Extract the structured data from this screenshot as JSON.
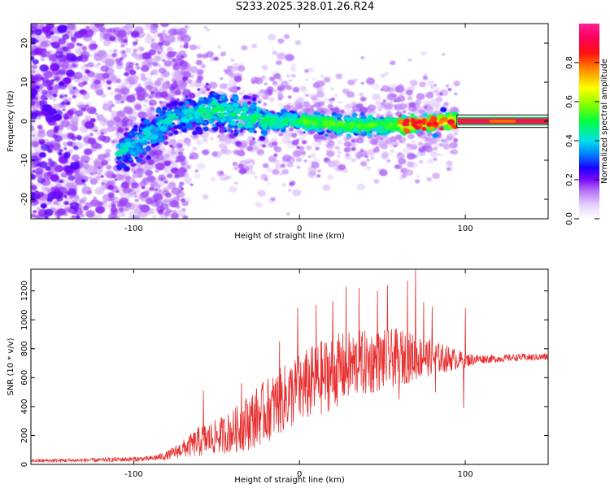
{
  "title": "S233.2025.328.01.26.R24",
  "colors": {
    "frame": "#000000",
    "snr_line": "#e83030",
    "stripe": "#e0204a",
    "background": "#ffffff"
  },
  "chart_data": [
    {
      "type": "heatmap",
      "name": "spectrogram",
      "xlabel": "Height of straight line (km)",
      "ylabel": "Frequency (Hz)",
      "xlim": [
        -162,
        150
      ],
      "ylim": [
        -25,
        25
      ],
      "xticks": [
        -100,
        0,
        100
      ],
      "yticks": [
        -20,
        -10,
        0,
        10,
        20
      ],
      "grid": false,
      "description_of_ridge": [
        {
          "x": -108,
          "y": -8
        },
        {
          "x": -95,
          "y": -5
        },
        {
          "x": -80,
          "y": 0
        },
        {
          "x": -65,
          "y": 2
        },
        {
          "x": -50,
          "y": 3
        },
        {
          "x": -35,
          "y": 1
        },
        {
          "x": -15,
          "y": 0
        },
        {
          "x": 0,
          "y": 0
        },
        {
          "x": 30,
          "y": -1
        },
        {
          "x": 60,
          "y": -1
        },
        {
          "x": 95,
          "y": 0
        },
        {
          "x": 150,
          "y": 0
        }
      ],
      "colorbar": {
        "label": "Normalized spectral amplitude",
        "range": [
          0,
          1
        ],
        "ticks": [
          "0.0",
          "0.2",
          "0.4",
          "0.6",
          "0.8"
        ]
      }
    },
    {
      "type": "line",
      "name": "snr",
      "xlabel": "Height of straight line (km)",
      "ylabel": "SNR (10 * v/v)",
      "xlim": [
        -162,
        150
      ],
      "ylim": [
        0,
        1350
      ],
      "xticks": [
        -100,
        0,
        100
      ],
      "yticks": [
        0,
        200,
        400,
        600,
        800,
        1000,
        1200
      ],
      "grid": false,
      "series": [
        {
          "name": "SNR",
          "envelope_x": [
            -162,
            -120,
            -90,
            -80,
            -70,
            -60,
            -50,
            -40,
            -30,
            -20,
            -10,
            0,
            10,
            20,
            30,
            40,
            50,
            60,
            70,
            80,
            90,
            100,
            110,
            120,
            130,
            140,
            150
          ],
          "envelope_mean": [
            25,
            30,
            40,
            60,
            110,
            160,
            190,
            230,
            300,
            370,
            450,
            520,
            580,
            640,
            680,
            700,
            720,
            740,
            740,
            740,
            730,
            720,
            730,
            730,
            740,
            740,
            745
          ],
          "envelope_spread": [
            12,
            15,
            18,
            30,
            60,
            110,
            120,
            150,
            200,
            220,
            230,
            250,
            260,
            260,
            240,
            230,
            210,
            200,
            160,
            120,
            90,
            50,
            30,
            25,
            25,
            25,
            25
          ],
          "spikes": [
            {
              "x": -58,
              "y": 510
            },
            {
              "x": -35,
              "y": 560
            },
            {
              "x": -12,
              "y": 850
            },
            {
              "x": -1,
              "y": 1080
            },
            {
              "x": 10,
              "y": 1100
            },
            {
              "x": 20,
              "y": 1130
            },
            {
              "x": 28,
              "y": 1230
            },
            {
              "x": 36,
              "y": 1220
            },
            {
              "x": 47,
              "y": 1200
            },
            {
              "x": 53,
              "y": 1240
            },
            {
              "x": 65,
              "y": 1270
            },
            {
              "x": 70,
              "y": 1350
            },
            {
              "x": 75,
              "y": 1120
            },
            {
              "x": 80,
              "y": 1090
            },
            {
              "x": 100,
              "y": 1080
            }
          ],
          "dips": [
            {
              "x": 99,
              "y": 390
            },
            {
              "x": 82,
              "y": 500
            },
            {
              "x": 60,
              "y": 450
            }
          ]
        }
      ]
    }
  ]
}
